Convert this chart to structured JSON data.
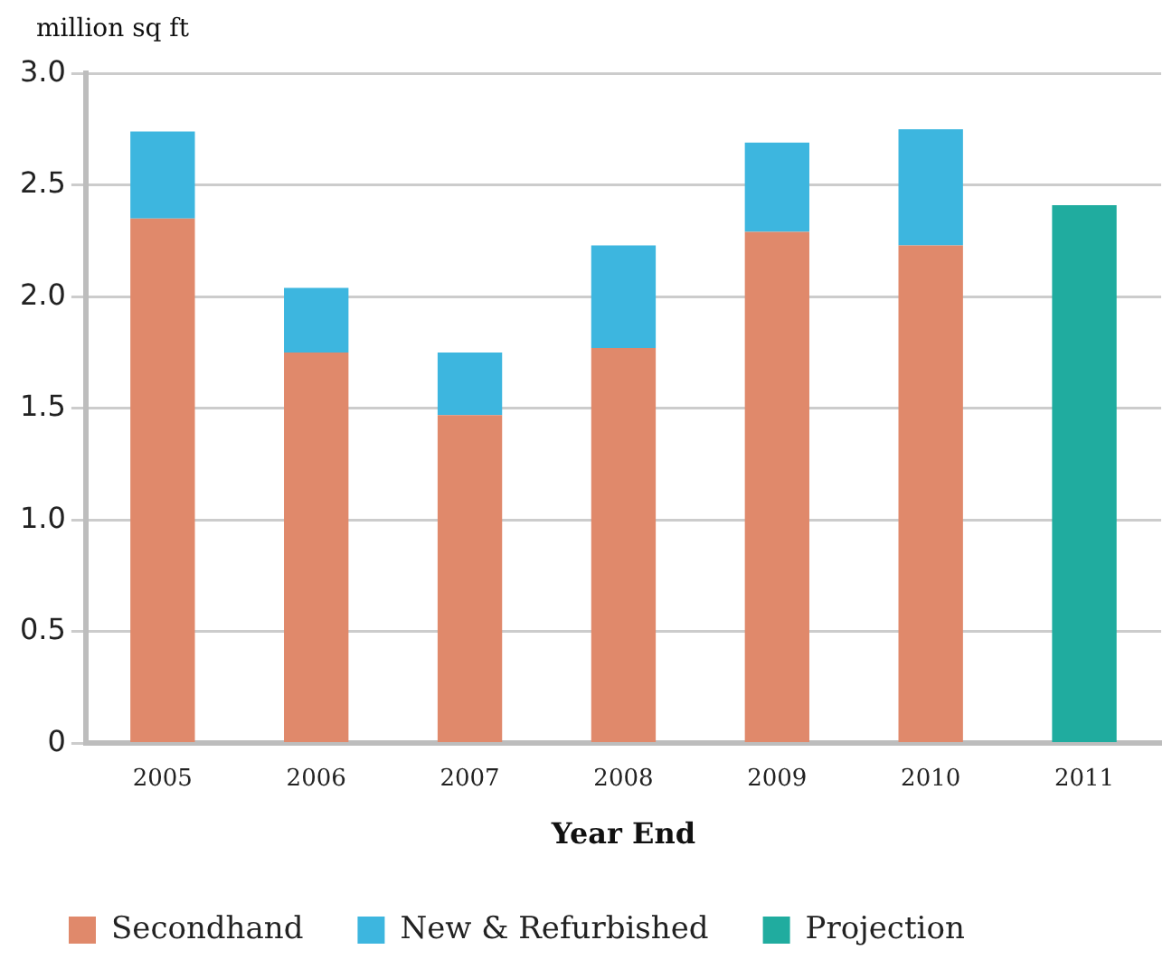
{
  "chart_data": {
    "type": "bar",
    "ylabel": "million sq ft",
    "xlabel": "Year End",
    "categories": [
      "2005",
      "2006",
      "2007",
      "2008",
      "2009",
      "2010",
      "2011"
    ],
    "stacked": true,
    "ylim": [
      0,
      3.0
    ],
    "yticks": [
      {
        "value": 0,
        "label": "0"
      },
      {
        "value": 0.5,
        "label": "0.5"
      },
      {
        "value": 1,
        "label": "1.0"
      },
      {
        "value": 1.5,
        "label": "1.5"
      },
      {
        "value": 2,
        "label": "2.0"
      },
      {
        "value": 2.5,
        "label": "2.5"
      },
      {
        "value": 3,
        "label": "3.0"
      }
    ],
    "grid": "y",
    "legend": "bottom",
    "series": [
      {
        "name": "Secondhand",
        "color": "#e0896b",
        "values": [
          2.35,
          1.75,
          1.47,
          1.77,
          2.29,
          2.23,
          null
        ]
      },
      {
        "name": "New & Refurbished",
        "color": "#3db6df",
        "values": [
          0.39,
          0.29,
          0.28,
          0.46,
          0.4,
          0.52,
          null
        ]
      },
      {
        "name": "Projection",
        "color": "#20ac9f",
        "values": [
          null,
          null,
          null,
          null,
          null,
          null,
          2.41
        ]
      }
    ]
  }
}
